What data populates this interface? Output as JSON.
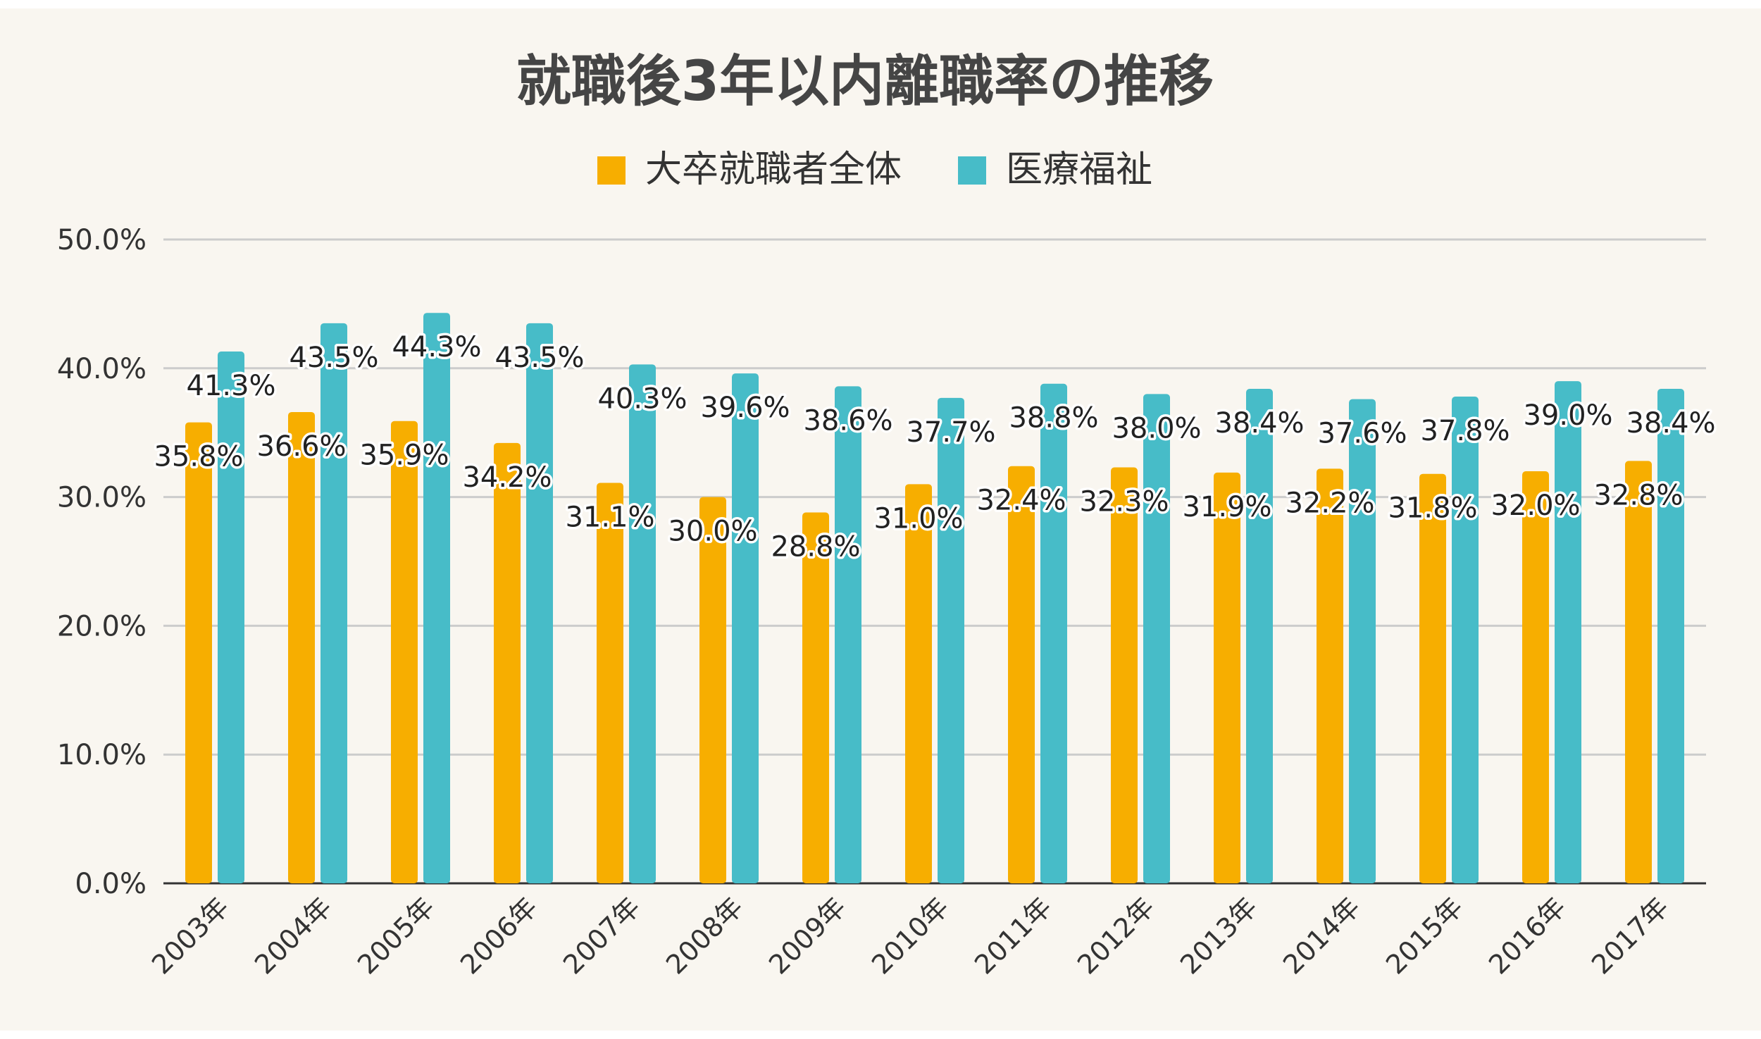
{
  "chart_data": {
    "type": "bar",
    "title": "就職後3年以内離職率の推移",
    "xlabel": "",
    "ylabel": "",
    "ylim": [
      0,
      50
    ],
    "yticks": [
      "0.0%",
      "10.0%",
      "20.0%",
      "30.0%",
      "40.0%",
      "50.0%"
    ],
    "grid": true,
    "legend_position": "top-center",
    "categories": [
      "2003年",
      "2004年",
      "2005年",
      "2006年",
      "2007年",
      "2008年",
      "2009年",
      "2010年",
      "2011年",
      "2012年",
      "2013年",
      "2014年",
      "2015年",
      "2016年",
      "2017年"
    ],
    "series": [
      {
        "name": "大卒就職者全体",
        "color": "#f7ae00",
        "values": [
          35.8,
          36.6,
          35.9,
          34.2,
          31.1,
          30.0,
          28.8,
          31.0,
          32.4,
          32.3,
          31.9,
          32.2,
          31.8,
          32.0,
          32.8
        ],
        "labels": [
          "35.8%",
          "36.6%",
          "35.9%",
          "34.2%",
          "31.1%",
          "30.0%",
          "28.8%",
          "31.0%",
          "32.4%",
          "32.3%",
          "31.9%",
          "32.2%",
          "31.8%",
          "32.0%",
          "32.8%"
        ]
      },
      {
        "name": "医療福祉",
        "color": "#47bcc8",
        "values": [
          41.3,
          43.5,
          44.3,
          43.5,
          40.3,
          39.6,
          38.6,
          37.7,
          38.8,
          38.0,
          38.4,
          37.6,
          37.8,
          39.0,
          38.4
        ],
        "labels": [
          "41.3%",
          "43.5%",
          "44.3%",
          "43.5%",
          "40.3%",
          "39.6%",
          "38.6%",
          "37.7%",
          "38.8%",
          "38.0%",
          "38.4%",
          "37.6%",
          "37.8%",
          "39.0%",
          "38.4%"
        ]
      }
    ]
  }
}
